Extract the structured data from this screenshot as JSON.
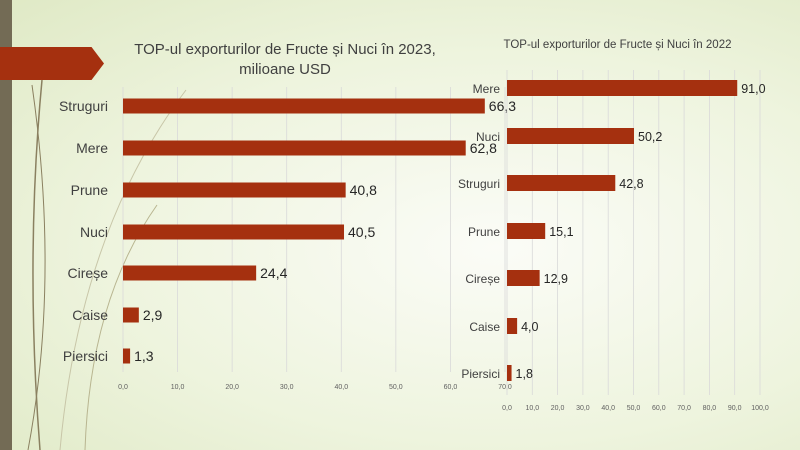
{
  "colors": {
    "bar": "#a5300f",
    "accent_stripe": "#736b55",
    "grid": "#d9d9d9"
  },
  "chart_data": [
    {
      "type": "bar",
      "orientation": "horizontal",
      "title": "TOP-ul exporturilor de Fructe și Nuci în 2023, milioane USD",
      "title_line1": "TOP-ul exporturilor de Fructe și Nuci în 2023,",
      "title_line2": "milioane USD",
      "categories": [
        "Struguri",
        "Mere",
        "Prune",
        "Nuci",
        "Cireșe",
        "Caise",
        "Piersici"
      ],
      "values": [
        66.3,
        62.8,
        40.8,
        40.5,
        24.4,
        2.9,
        1.3
      ],
      "value_labels": [
        "66,3",
        "62,8",
        "40,8",
        "40,5",
        "24,4",
        "2,9",
        "1,3"
      ],
      "xlim": [
        0,
        70
      ],
      "ticks": [
        "0,0",
        "10,0",
        "20,0",
        "30,0",
        "40,0",
        "50,0",
        "60,0",
        "70,0"
      ],
      "grid": true
    },
    {
      "type": "bar",
      "orientation": "horizontal",
      "title": "TOP-ul exporturilor de Fructe și Nuci în 2022",
      "categories": [
        "Mere",
        "Nuci",
        "Struguri",
        "Prune",
        "Cireșe",
        "Caise",
        "Piersici"
      ],
      "values": [
        91.0,
        50.2,
        42.8,
        15.1,
        12.9,
        4.0,
        1.8
      ],
      "value_labels": [
        "91,0",
        "50,2",
        "42,8",
        "15,1",
        "12,9",
        "4,0",
        "1,8"
      ],
      "xlim": [
        0,
        100
      ],
      "ticks": [
        "0,0",
        "10,0",
        "20,0",
        "30,0",
        "40,0",
        "50,0",
        "60,0",
        "70,0",
        "80,0",
        "90,0",
        "100,0"
      ],
      "grid": true
    }
  ]
}
